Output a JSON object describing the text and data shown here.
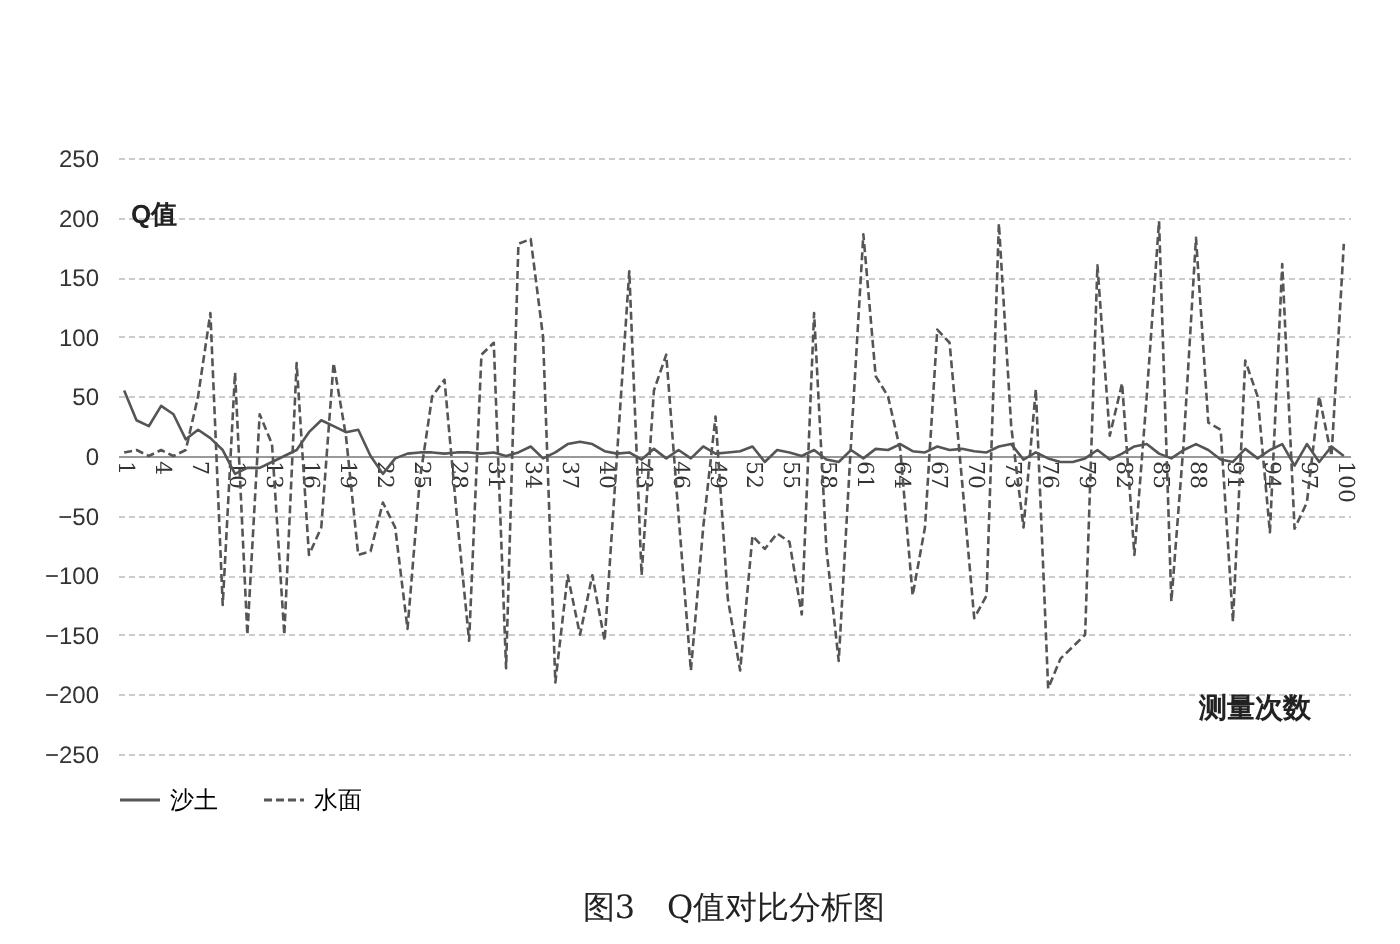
{
  "chart_data": {
    "type": "line",
    "title": "图3　Q值对比分析图",
    "xlabel": "测量次数",
    "ylabel": "Q值",
    "categories": [
      "1",
      null,
      null,
      "4",
      null,
      null,
      "7",
      null,
      null,
      "10",
      null,
      null,
      "13",
      null,
      null,
      "16",
      null,
      null,
      "19",
      null,
      null,
      "22",
      null,
      null,
      "25",
      null,
      null,
      "28",
      null,
      null,
      "31",
      null,
      null,
      "34",
      null,
      null,
      "37",
      null,
      null,
      "40",
      null,
      null,
      "43",
      null,
      null,
      "46",
      null,
      null,
      "49",
      null,
      null,
      "52",
      null,
      null,
      "55",
      null,
      null,
      "58",
      null,
      null,
      "61",
      null,
      null,
      "64",
      null,
      null,
      "67",
      null,
      null,
      "70",
      null,
      null,
      "73",
      null,
      null,
      "76",
      null,
      null,
      "79",
      null,
      null,
      "82",
      null,
      null,
      "85",
      null,
      null,
      "88",
      null,
      null,
      "91",
      null,
      null,
      "94",
      null,
      null,
      "97",
      null,
      null,
      "100"
    ],
    "series": [
      {
        "name": "沙土",
        "color": "#555555",
        "line_style": "solid",
        "values": [
          55,
          30,
          25,
          42,
          35,
          14,
          22,
          15,
          5,
          -15,
          -10,
          -10,
          -5,
          0,
          5,
          20,
          30,
          25,
          20,
          22,
          0,
          -15,
          -2,
          2,
          3,
          3,
          2,
          3,
          3,
          2,
          3,
          0,
          3,
          8,
          -2,
          3,
          10,
          12,
          10,
          4,
          2,
          3,
          -3,
          6,
          -2,
          5,
          -2,
          8,
          2,
          3,
          4,
          8,
          -5,
          5,
          3,
          0,
          5,
          -3,
          -5,
          5,
          -2,
          6,
          5,
          10,
          4,
          3,
          8,
          5,
          6,
          4,
          3,
          8,
          10,
          -3,
          3,
          -2,
          -5,
          -5,
          -2,
          5,
          -3,
          2,
          8,
          10,
          2,
          -2,
          5,
          10,
          5,
          -3,
          -5,
          6,
          -2,
          5,
          10,
          -8,
          10,
          -5,
          8,
          0
        ]
      },
      {
        "name": "水面",
        "color": "#555555",
        "line_style": "dashed",
        "values": [
          3,
          5,
          0,
          5,
          0,
          5,
          50,
          120,
          -125,
          70,
          -150,
          35,
          10,
          -150,
          78,
          -83,
          -60,
          78,
          17,
          -83,
          -80,
          -39,
          -60,
          -145,
          -20,
          50,
          64,
          -50,
          -155,
          85,
          95,
          -178,
          178,
          182,
          100,
          -190,
          -100,
          -150,
          -100,
          -155,
          0,
          155,
          -100,
          55,
          85,
          -50,
          -180,
          -60,
          33,
          -120,
          -180,
          -67,
          -78,
          -65,
          -72,
          -133,
          120,
          -78,
          -172,
          11,
          186,
          67,
          50,
          5,
          -117,
          -60,
          106,
          95,
          -20,
          -136,
          -117,
          195,
          25,
          -60,
          56,
          -195,
          -170,
          -160,
          -150,
          160,
          17,
          61,
          -83,
          50,
          197,
          -122,
          11,
          183,
          28,
          22,
          -139,
          80,
          50,
          -64,
          161,
          -61,
          -39,
          50,
          0,
          178
        ]
      }
    ],
    "ylim": [
      -250,
      250
    ],
    "yticks": [
      -250,
      -200,
      -150,
      -100,
      -50,
      0,
      50,
      100,
      150,
      200,
      250
    ],
    "grid": "y",
    "legend": "bottom"
  }
}
